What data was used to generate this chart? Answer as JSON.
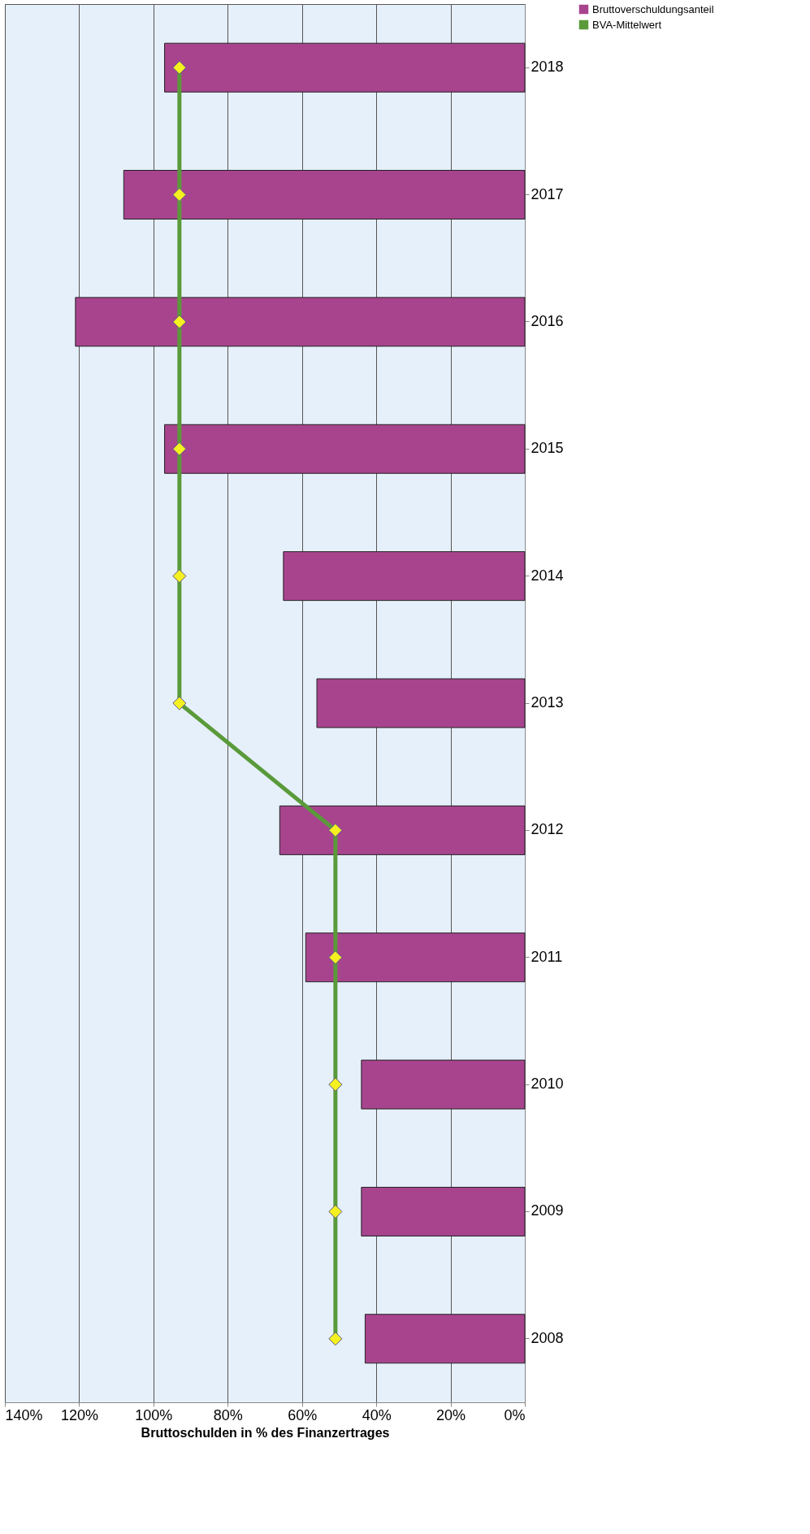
{
  "chart_data": {
    "type": "bar",
    "orientation": "horizontal",
    "xlabel": "Bruttoschulden in % des Finanzertrages",
    "categories": [
      "2018",
      "2017",
      "2016",
      "2015",
      "2014",
      "2013",
      "2012",
      "2011",
      "2010",
      "2009",
      "2008"
    ],
    "series": [
      {
        "name": "Bruttoverschuldungsanteil",
        "color": "#a8448e",
        "values": [
          97,
          108,
          121,
          97,
          65,
          56,
          66,
          59,
          44,
          44,
          43
        ]
      },
      {
        "name": "BVA-Mittelwert",
        "type": "line",
        "color": "#5a9a3a",
        "marker": "diamond",
        "values": [
          93,
          93,
          93,
          93,
          93,
          93,
          51,
          51,
          51,
          51,
          51
        ]
      }
    ],
    "xlim": [
      140,
      0
    ],
    "xticks": [
      {
        "value": 140,
        "label": "140%"
      },
      {
        "value": 120,
        "label": "120%"
      },
      {
        "value": 100,
        "label": "100%"
      },
      {
        "value": 80,
        "label": "80%"
      },
      {
        "value": 60,
        "label": "60%"
      },
      {
        "value": 40,
        "label": "40%"
      },
      {
        "value": 20,
        "label": "20%"
      },
      {
        "value": 0,
        "label": "0%"
      }
    ],
    "grid": "x",
    "legend": "right"
  }
}
